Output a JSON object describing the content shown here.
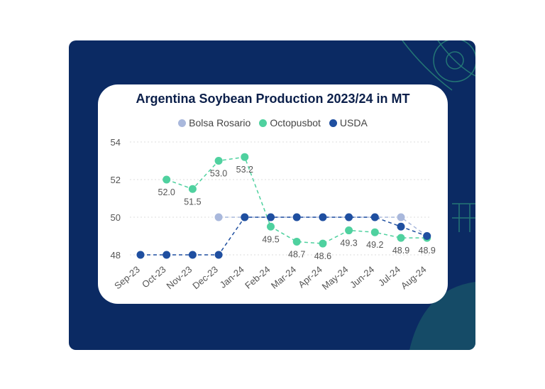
{
  "chart_data": {
    "type": "line",
    "title": "Argentina Soybean Production 2023/24 in MT",
    "legend_position": "top",
    "grid": true,
    "ylim": [
      48,
      54
    ],
    "yticks": [
      "48",
      "50",
      "52",
      "54"
    ],
    "categories": [
      "Sep-23",
      "Oct-23",
      "Nov-23",
      "Dec-23",
      "Jan-24",
      "Feb-24",
      "Mar-24",
      "Apr-24",
      "May-24",
      "Jun-24",
      "Jul-24",
      "Aug-24"
    ],
    "series": [
      {
        "name": "Bolsa Rosario",
        "color": "#a9b8dc",
        "values": [
          null,
          null,
          null,
          50,
          50,
          50,
          50,
          50,
          50,
          50,
          50,
          49
        ]
      },
      {
        "name": "Octopusbot",
        "color": "#4fd19f",
        "values": [
          null,
          52.0,
          51.5,
          53.0,
          53.2,
          49.5,
          48.7,
          48.6,
          49.3,
          49.2,
          48.9,
          48.9
        ],
        "labels": [
          null,
          "52.0",
          "51.5",
          "53.0",
          "53.2",
          "49.5",
          "48.7",
          "48.6",
          "49.3",
          "49.2",
          "48.9",
          "48.9"
        ]
      },
      {
        "name": "USDA",
        "color": "#1f4fa0",
        "values": [
          48,
          48,
          48,
          48,
          50,
          50,
          50,
          50,
          50,
          50,
          49.5,
          49
        ]
      }
    ]
  }
}
